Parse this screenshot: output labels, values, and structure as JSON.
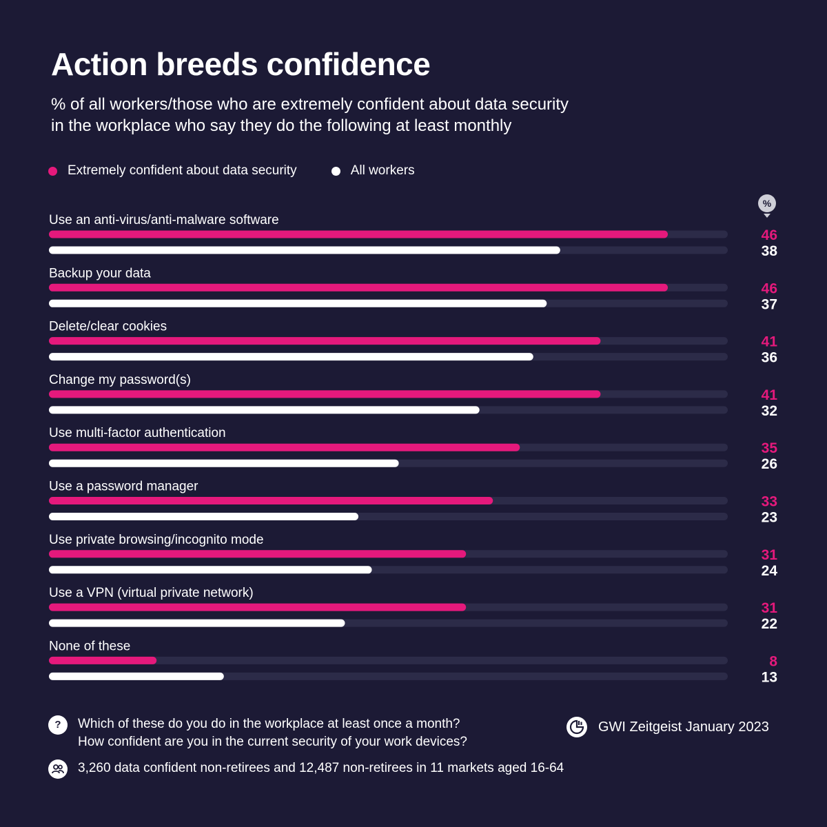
{
  "title": "Action breeds confidence",
  "subtitle_line1": "% of all workers/those who are extremely confident about data security",
  "subtitle_line2": "in the workplace who say they do the following at least monthly",
  "legend": {
    "series1": "Extremely confident about data security",
    "series2": "All workers"
  },
  "unit_badge": "%",
  "colors": {
    "background": "#1c1a35",
    "accent": "#e5197c",
    "white": "#ffffff",
    "track": "#2c2b48"
  },
  "chart_data": {
    "type": "bar",
    "categories": [
      "Use an anti-virus/anti-malware software",
      "Backup your data",
      "Delete/clear cookies",
      "Change my password(s)",
      "Use multi-factor authentication",
      "Use a password manager",
      "Use private browsing/incognito mode",
      "Use a VPN (virtual private network)",
      "None of these"
    ],
    "series": [
      {
        "name": "Extremely confident about data security",
        "color": "#e5197c",
        "values": [
          46,
          46,
          41,
          41,
          35,
          33,
          31,
          31,
          8
        ]
      },
      {
        "name": "All workers",
        "color": "#ffffff",
        "values": [
          38,
          37,
          36,
          32,
          26,
          23,
          24,
          22,
          13
        ]
      }
    ],
    "xlim": [
      0,
      50
    ],
    "orientation": "horizontal"
  },
  "footer": {
    "question_icon": "?",
    "question_line1": "Which of these do you do in the workplace at least once a month?",
    "question_line2": "How confident are you in the current security of your work devices?",
    "sample": "3,260 data confident non-retirees and 12,487 non-retirees in 11 markets aged 16-64",
    "source": "GWI Zeitgeist January 2023"
  }
}
